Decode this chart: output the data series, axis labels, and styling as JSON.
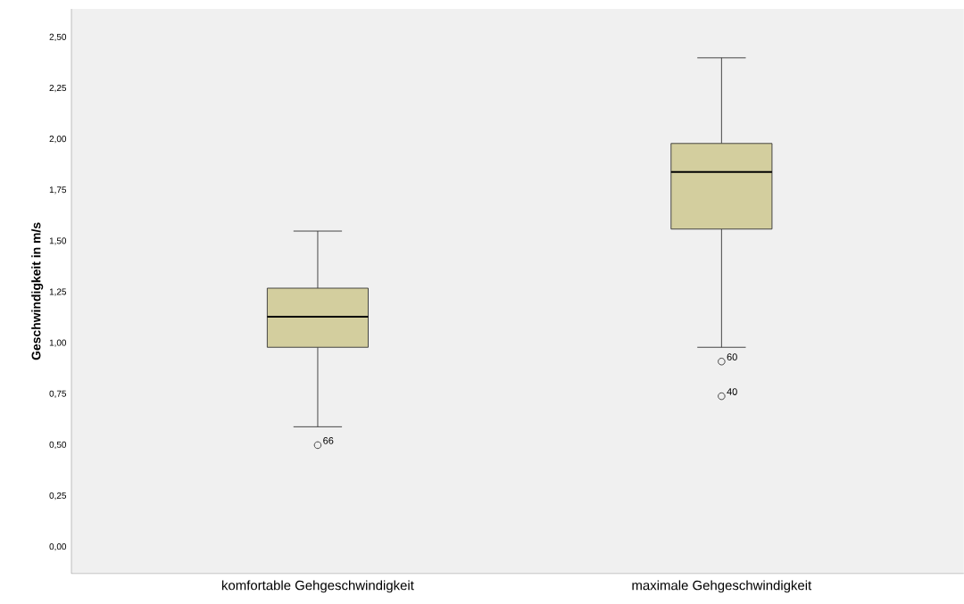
{
  "chart_data": {
    "type": "box",
    "ylabel": "Geschwindigkeit in m/s",
    "categories": [
      "komfortable Gehgeschwindigkeit",
      "maximale Gehgeschwindigkeit"
    ],
    "boxes": [
      {
        "low": 0.59,
        "q1": 0.98,
        "median": 1.13,
        "q3": 1.27,
        "high": 1.55,
        "outliers": [
          0.5
        ]
      },
      {
        "low": 0.98,
        "q1": 1.56,
        "median": 1.84,
        "q3": 1.98,
        "high": 2.4,
        "outliers": [
          0.91,
          0.74
        ]
      }
    ],
    "color": "#d3ce9e",
    "ylim": [
      -0.13,
      2.64
    ],
    "yticks": [
      {
        "value": 0,
        "label": "0,00"
      },
      {
        "value": 0.25,
        "label": "0,25"
      },
      {
        "value": 0.5,
        "label": "0,50"
      },
      {
        "value": 0.75,
        "label": "0,75"
      },
      {
        "value": 1,
        "label": "1,00"
      },
      {
        "value": 1.25,
        "label": "1,25"
      },
      {
        "value": 1.5,
        "label": "1,50"
      },
      {
        "value": 1.75,
        "label": "1,75"
      },
      {
        "value": 2,
        "label": "2,00"
      },
      {
        "value": 2.25,
        "label": "2,25"
      },
      {
        "value": 2.5,
        "label": "2,50"
      }
    ],
    "marker": "circle",
    "grid": false,
    "annotations": [
      "66",
      "60",
      "40"
    ]
  }
}
